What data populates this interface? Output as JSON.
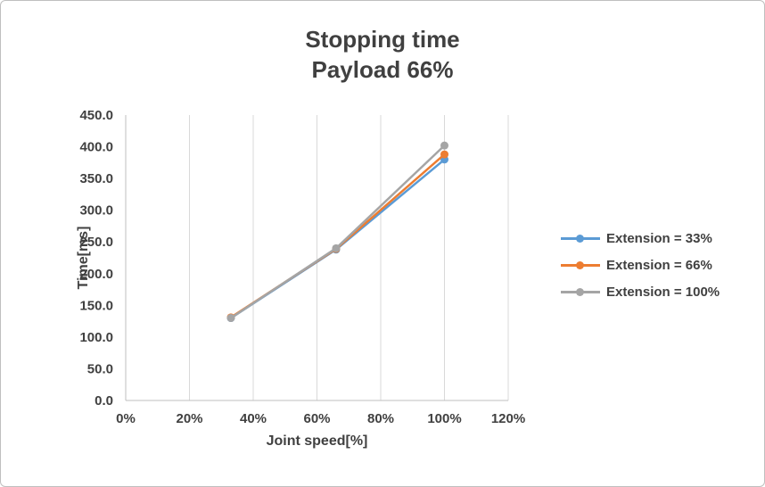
{
  "frame": {
    "background": "#ffffff",
    "border_color": "#bfbfbf"
  },
  "title": {
    "line1": "Stopping time",
    "line2": "Payload 66%"
  },
  "chart_data": {
    "type": "line",
    "title": "Stopping time Payload 66%",
    "x": [
      33,
      66,
      100
    ],
    "series": [
      {
        "name": "Extension = 33%",
        "color": "#5B9BD5",
        "values": [
          130,
          238,
          380
        ]
      },
      {
        "name": "Extension = 66%",
        "color": "#ED7D31",
        "values": [
          131,
          239,
          388
        ]
      },
      {
        "name": "Extension = 100%",
        "color": "#A5A5A5",
        "values": [
          130,
          240,
          402
        ]
      }
    ],
    "xlabel": "Joint speed[%]",
    "ylabel": "Time[ms]",
    "xlim": [
      0,
      120
    ],
    "ylim": [
      0,
      450
    ],
    "x_tick_values": [
      0,
      20,
      40,
      60,
      80,
      100,
      120
    ],
    "x_ticks": [
      "0%",
      "20%",
      "40%",
      "60%",
      "80%",
      "100%",
      "120%"
    ],
    "y_tick_values": [
      0,
      50,
      100,
      150,
      200,
      250,
      300,
      350,
      400,
      450
    ],
    "y_ticks": [
      "0.0",
      "50.0",
      "100.0",
      "150.0",
      "200.0",
      "250.0",
      "300.0",
      "350.0",
      "400.0",
      "450.0"
    ],
    "grid": "vertical",
    "legend_position": "right",
    "colors": {
      "gridline": "#D9D9D9",
      "axis_line": "#BFBFBF",
      "text": "#404040"
    }
  }
}
